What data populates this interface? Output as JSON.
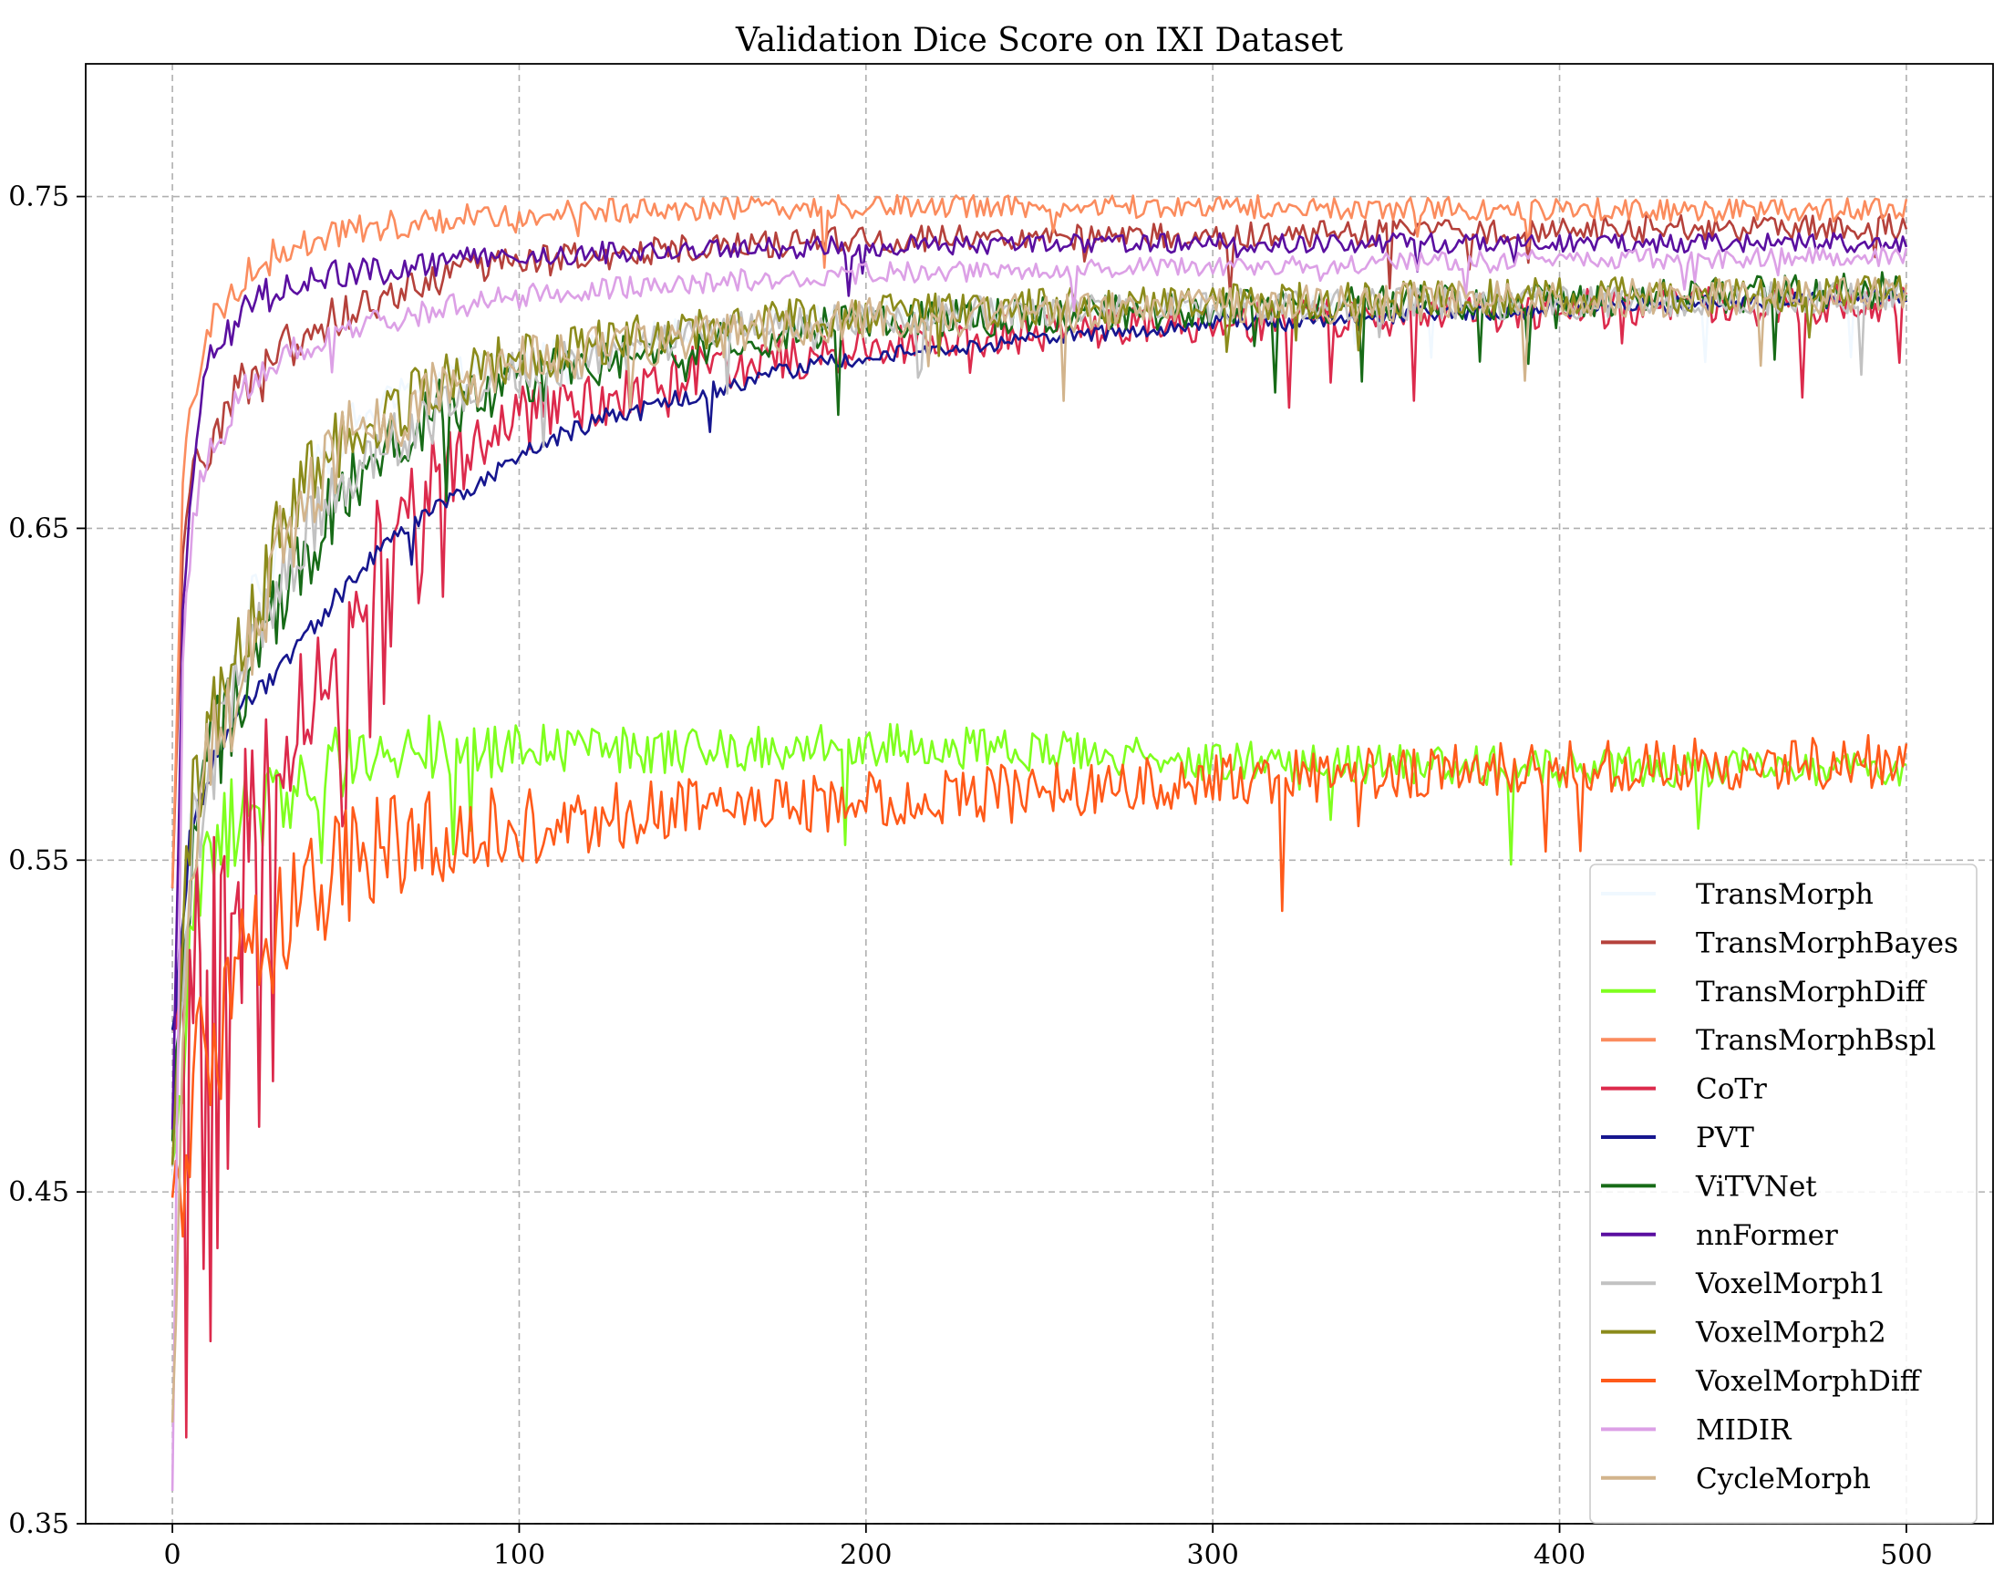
{
  "chart_data": {
    "type": "line",
    "title": "Validation Dice Score on IXI Dataset",
    "xlabel": "",
    "ylabel": "",
    "xlim": [
      -25,
      525
    ],
    "ylim": [
      0.35,
      0.79
    ],
    "x_ticks": [
      0,
      100,
      200,
      300,
      400,
      500
    ],
    "y_ticks": [
      0.35,
      0.45,
      0.55,
      0.65,
      0.75
    ],
    "x_tick_labels": [
      "0",
      "100",
      "200",
      "300",
      "400",
      "500"
    ],
    "y_tick_labels": [
      "0.35",
      "0.45",
      "0.55",
      "0.65",
      "0.75"
    ],
    "grid": true,
    "legend_position": "lower-right",
    "epochs": 500,
    "series": [
      {
        "name": "TransMorph",
        "color": "#f0f8ff",
        "key": [
          [
            0,
            0.45
          ],
          [
            5,
            0.56
          ],
          [
            10,
            0.58
          ],
          [
            20,
            0.62
          ],
          [
            30,
            0.645
          ],
          [
            40,
            0.665
          ],
          [
            50,
            0.68
          ],
          [
            75,
            0.695
          ],
          [
            100,
            0.7
          ],
          [
            150,
            0.71
          ],
          [
            200,
            0.714
          ],
          [
            300,
            0.716
          ],
          [
            400,
            0.718
          ],
          [
            500,
            0.72
          ]
        ],
        "noise": 0.004,
        "decay": 0.4
      },
      {
        "name": "TransMorphBayes",
        "color": "#b5413b",
        "key": [
          [
            0,
            0.54
          ],
          [
            3,
            0.64
          ],
          [
            6,
            0.665
          ],
          [
            10,
            0.675
          ],
          [
            20,
            0.695
          ],
          [
            30,
            0.705
          ],
          [
            50,
            0.715
          ],
          [
            75,
            0.725
          ],
          [
            100,
            0.73
          ],
          [
            150,
            0.735
          ],
          [
            200,
            0.737
          ],
          [
            300,
            0.738
          ],
          [
            400,
            0.74
          ],
          [
            500,
            0.741
          ]
        ],
        "noise": 0.004,
        "decay": 0.3
      },
      {
        "name": "TransMorphDiff",
        "color": "#7fff1e",
        "key": [
          [
            0,
            0.455
          ],
          [
            5,
            0.52
          ],
          [
            10,
            0.55
          ],
          [
            20,
            0.565
          ],
          [
            40,
            0.575
          ],
          [
            60,
            0.585
          ],
          [
            100,
            0.583
          ],
          [
            150,
            0.583
          ],
          [
            200,
            0.585
          ],
          [
            250,
            0.583
          ],
          [
            300,
            0.58
          ],
          [
            350,
            0.579
          ],
          [
            400,
            0.578
          ],
          [
            500,
            0.578
          ]
        ],
        "noise": 0.006,
        "decay": 0.5
      },
      {
        "name": "TransMorphBspl",
        "color": "#fb8c5e",
        "key": [
          [
            0,
            0.54
          ],
          [
            3,
            0.665
          ],
          [
            6,
            0.69
          ],
          [
            10,
            0.71
          ],
          [
            20,
            0.725
          ],
          [
            30,
            0.733
          ],
          [
            50,
            0.74
          ],
          [
            75,
            0.743
          ],
          [
            100,
            0.745
          ],
          [
            150,
            0.746
          ],
          [
            200,
            0.747
          ],
          [
            300,
            0.747
          ],
          [
            400,
            0.746
          ],
          [
            500,
            0.746
          ]
        ],
        "noise": 0.0035,
        "decay": 0.2
      },
      {
        "name": "CoTr",
        "color": "#dc2a4c",
        "key": [
          [
            0,
            0.49
          ],
          [
            5,
            0.53
          ],
          [
            10,
            0.54
          ],
          [
            20,
            0.56
          ],
          [
            30,
            0.58
          ],
          [
            40,
            0.6
          ],
          [
            50,
            0.625
          ],
          [
            60,
            0.65
          ],
          [
            75,
            0.665
          ],
          [
            100,
            0.683
          ],
          [
            150,
            0.697
          ],
          [
            200,
            0.705
          ],
          [
            300,
            0.712
          ],
          [
            400,
            0.716
          ],
          [
            500,
            0.718
          ]
        ],
        "noise": 0.006,
        "decay": 1.0,
        "spikes": 0.1
      },
      {
        "name": "PVT",
        "color": "#16168f",
        "key": [
          [
            0,
            0.5
          ],
          [
            5,
            0.555
          ],
          [
            10,
            0.575
          ],
          [
            20,
            0.595
          ],
          [
            30,
            0.605
          ],
          [
            40,
            0.62
          ],
          [
            50,
            0.632
          ],
          [
            60,
            0.645
          ],
          [
            75,
            0.655
          ],
          [
            100,
            0.672
          ],
          [
            125,
            0.684
          ],
          [
            150,
            0.69
          ],
          [
            175,
            0.697
          ],
          [
            200,
            0.702
          ],
          [
            250,
            0.707
          ],
          [
            300,
            0.712
          ],
          [
            350,
            0.714
          ],
          [
            400,
            0.716
          ],
          [
            500,
            0.72
          ]
        ],
        "noise": 0.0025,
        "decay": 0.2
      },
      {
        "name": "ViTVNet",
        "color": "#176b17",
        "key": [
          [
            0,
            0.47
          ],
          [
            5,
            0.55
          ],
          [
            10,
            0.575
          ],
          [
            20,
            0.6
          ],
          [
            30,
            0.625
          ],
          [
            40,
            0.645
          ],
          [
            50,
            0.66
          ],
          [
            60,
            0.675
          ],
          [
            75,
            0.685
          ],
          [
            100,
            0.695
          ],
          [
            150,
            0.705
          ],
          [
            200,
            0.712
          ],
          [
            300,
            0.716
          ],
          [
            400,
            0.719
          ],
          [
            500,
            0.722
          ]
        ],
        "noise": 0.0055,
        "decay": 0.7
      },
      {
        "name": "nnFormer",
        "color": "#5a0fa0",
        "key": [
          [
            0,
            0.47
          ],
          [
            3,
            0.62
          ],
          [
            6,
            0.665
          ],
          [
            10,
            0.7
          ],
          [
            20,
            0.715
          ],
          [
            30,
            0.722
          ],
          [
            50,
            0.727
          ],
          [
            75,
            0.73
          ],
          [
            100,
            0.732
          ],
          [
            150,
            0.734
          ],
          [
            200,
            0.735
          ],
          [
            300,
            0.736
          ],
          [
            400,
            0.736
          ],
          [
            500,
            0.736
          ]
        ],
        "noise": 0.003,
        "decay": 0.3
      },
      {
        "name": "VoxelMorph1",
        "color": "#c2c2c2",
        "key": [
          [
            0,
            0.46
          ],
          [
            5,
            0.55
          ],
          [
            10,
            0.575
          ],
          [
            20,
            0.605
          ],
          [
            30,
            0.63
          ],
          [
            40,
            0.65
          ],
          [
            50,
            0.665
          ],
          [
            75,
            0.685
          ],
          [
            100,
            0.697
          ],
          [
            150,
            0.708
          ],
          [
            200,
            0.714
          ],
          [
            300,
            0.717
          ],
          [
            400,
            0.718
          ],
          [
            500,
            0.72
          ]
        ],
        "noise": 0.005,
        "decay": 0.6
      },
      {
        "name": "VoxelMorph2",
        "color": "#8b8b1b",
        "key": [
          [
            0,
            0.46
          ],
          [
            5,
            0.56
          ],
          [
            10,
            0.585
          ],
          [
            20,
            0.615
          ],
          [
            30,
            0.645
          ],
          [
            40,
            0.665
          ],
          [
            50,
            0.678
          ],
          [
            75,
            0.692
          ],
          [
            100,
            0.702
          ],
          [
            150,
            0.71
          ],
          [
            200,
            0.715
          ],
          [
            300,
            0.718
          ],
          [
            400,
            0.72
          ],
          [
            500,
            0.721
          ]
        ],
        "noise": 0.0055,
        "decay": 0.6
      },
      {
        "name": "VoxelMorphDiff",
        "color": "#ff5a1a",
        "key": [
          [
            0,
            0.45
          ],
          [
            5,
            0.47
          ],
          [
            10,
            0.49
          ],
          [
            20,
            0.515
          ],
          [
            30,
            0.528
          ],
          [
            40,
            0.54
          ],
          [
            50,
            0.548
          ],
          [
            60,
            0.553
          ],
          [
            80,
            0.558
          ],
          [
            100,
            0.56
          ],
          [
            150,
            0.565
          ],
          [
            200,
            0.568
          ],
          [
            250,
            0.571
          ],
          [
            300,
            0.574
          ],
          [
            350,
            0.576
          ],
          [
            400,
            0.578
          ],
          [
            500,
            0.58
          ]
        ],
        "noise": 0.008,
        "decay": 0.7
      },
      {
        "name": "MIDIR",
        "color": "#dca0e6",
        "key": [
          [
            0,
            0.36
          ],
          [
            3,
            0.61
          ],
          [
            6,
            0.655
          ],
          [
            10,
            0.672
          ],
          [
            20,
            0.69
          ],
          [
            30,
            0.7
          ],
          [
            50,
            0.71
          ],
          [
            75,
            0.716
          ],
          [
            100,
            0.72
          ],
          [
            150,
            0.724
          ],
          [
            200,
            0.727
          ],
          [
            300,
            0.729
          ],
          [
            400,
            0.731
          ],
          [
            500,
            0.732
          ]
        ],
        "noise": 0.003,
        "decay": 0.3
      },
      {
        "name": "CycleMorph",
        "color": "#d2b48c",
        "key": [
          [
            0,
            0.38
          ],
          [
            5,
            0.55
          ],
          [
            10,
            0.575
          ],
          [
            20,
            0.61
          ],
          [
            30,
            0.64
          ],
          [
            40,
            0.662
          ],
          [
            50,
            0.677
          ],
          [
            75,
            0.69
          ],
          [
            100,
            0.7
          ],
          [
            150,
            0.707
          ],
          [
            200,
            0.713
          ],
          [
            300,
            0.717
          ],
          [
            400,
            0.719
          ],
          [
            500,
            0.721
          ]
        ],
        "noise": 0.006,
        "decay": 0.6
      }
    ]
  }
}
